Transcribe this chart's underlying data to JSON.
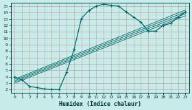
{
  "title": "",
  "xlabel": "Humidex (Indice chaleur)",
  "bg_color": "#c8ece9",
  "grid_color": "#c0a8a8",
  "line_color": "#006868",
  "xlim": [
    -0.5,
    23.5
  ],
  "ylim": [
    1.5,
    15.5
  ],
  "xticks": [
    0,
    1,
    2,
    3,
    4,
    5,
    6,
    7,
    8,
    9,
    10,
    11,
    12,
    13,
    14,
    15,
    16,
    17,
    18,
    19,
    20,
    21,
    22,
    23
  ],
  "yticks": [
    2,
    3,
    4,
    5,
    6,
    7,
    8,
    9,
    10,
    11,
    12,
    13,
    14,
    15
  ],
  "main_x": [
    0,
    1,
    2,
    3,
    4,
    5,
    6,
    7,
    8,
    9,
    10,
    11,
    12,
    13,
    14,
    15,
    16,
    17,
    18,
    19,
    20,
    21,
    22,
    23
  ],
  "main_y": [
    4.0,
    3.5,
    2.5,
    2.3,
    2.1,
    2.0,
    2.0,
    4.7,
    8.2,
    13.1,
    14.3,
    15.0,
    15.3,
    15.1,
    15.0,
    14.1,
    13.3,
    12.5,
    11.1,
    11.1,
    12.0,
    12.3,
    13.3,
    14.1
  ],
  "lines": [
    {
      "x": [
        0,
        23
      ],
      "y": [
        3.0,
        13.5
      ]
    },
    {
      "x": [
        0,
        23
      ],
      "y": [
        3.2,
        13.8
      ]
    },
    {
      "x": [
        0,
        23
      ],
      "y": [
        3.4,
        14.1
      ]
    },
    {
      "x": [
        0,
        23
      ],
      "y": [
        3.6,
        14.4
      ]
    }
  ]
}
